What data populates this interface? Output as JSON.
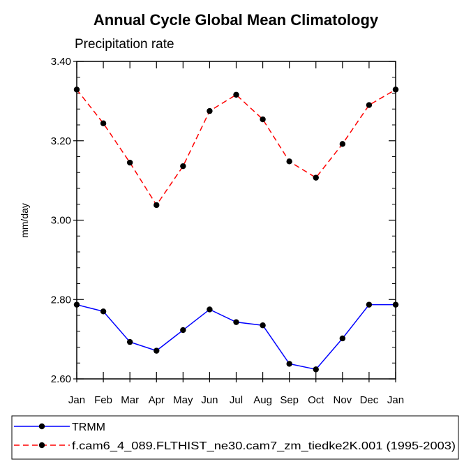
{
  "chart_data": {
    "type": "line",
    "title": "Annual Cycle Global Mean Climatology",
    "subtitle": "Precipitation rate",
    "ylabel": "mm/day",
    "xlabel": "",
    "categories": [
      "Jan",
      "Feb",
      "Mar",
      "Apr",
      "May",
      "Jun",
      "Jul",
      "Aug",
      "Sep",
      "Oct",
      "Nov",
      "Dec",
      "Jan"
    ],
    "ylim": [
      2.6,
      3.4
    ],
    "yticks": [
      2.6,
      2.8,
      3.0,
      3.2,
      3.4
    ],
    "ytick_labels": [
      "2.60",
      "2.80",
      "3.00",
      "3.20",
      "3.40"
    ],
    "yminor_step": 0.04,
    "series": [
      {
        "name": "TRMM",
        "color": "#0000ff",
        "dash": "solid",
        "values": [
          2.787,
          2.77,
          2.693,
          2.671,
          2.723,
          2.775,
          2.743,
          2.735,
          2.638,
          2.624,
          2.702,
          2.787,
          2.787
        ]
      },
      {
        "name": "f.cam6_4_089.FLTHIST_ne30.cam7_zm_tiedke2K.001 (1995-2003)",
        "color": "#ff0000",
        "dash": "dashed",
        "values": [
          3.329,
          3.244,
          3.145,
          3.038,
          3.136,
          3.275,
          3.316,
          3.254,
          3.148,
          3.107,
          3.192,
          3.29,
          3.329
        ]
      }
    ],
    "marker_color": "#000000",
    "legend_position": "bottom"
  }
}
